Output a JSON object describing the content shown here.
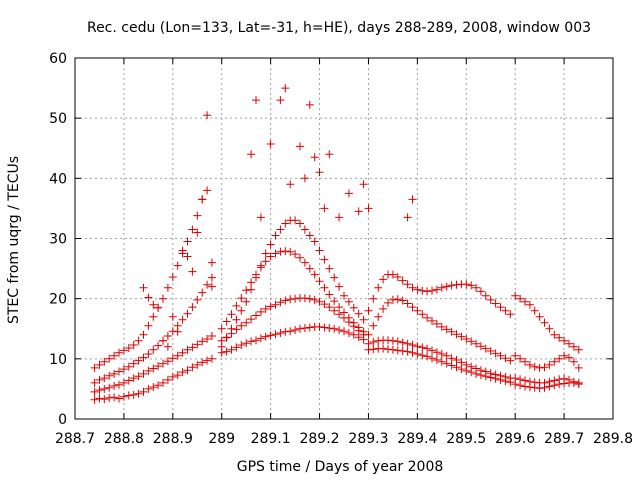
{
  "chart_data": {
    "type": "scatter",
    "title": "Rec. cedu (Lon=133, Lat=-31, h=HE), days 288-289, 2008, window 003",
    "xlabel": "GPS time / Days of year 2008",
    "ylabel": "STEC from uqrg / TECUs",
    "xlim": [
      288.7,
      289.8
    ],
    "ylim": [
      0,
      60
    ],
    "xticks": [
      "288.7",
      "288.8",
      "288.9",
      "289",
      "289.1",
      "289.2",
      "289.3",
      "289.4",
      "289.5",
      "289.6",
      "289.7",
      "289.8"
    ],
    "yticks": [
      "0",
      "10",
      "20",
      "30",
      "40",
      "50",
      "60"
    ],
    "grid": true,
    "marker": "plus",
    "colors": {
      "series": "#dd0000"
    },
    "series": [
      {
        "x": [
          288.74,
          288.75,
          288.76,
          288.77,
          288.78,
          288.79,
          288.8,
          288.81,
          288.82,
          288.83,
          288.84,
          288.85,
          288.86,
          288.87,
          288.88,
          288.89,
          288.9,
          288.91,
          288.92,
          288.93,
          288.94,
          288.95,
          288.96,
          288.97,
          288.98,
          288.74,
          288.75,
          288.76,
          288.77,
          288.78,
          288.79,
          288.8,
          288.81,
          288.82,
          288.83,
          288.84,
          288.85,
          288.86,
          288.87,
          288.88,
          288.89,
          288.9,
          288.91,
          288.92,
          288.93,
          288.94,
          288.95,
          288.96,
          288.97,
          288.98,
          288.74,
          288.75,
          288.76,
          288.77,
          288.78,
          288.79,
          288.8,
          288.81,
          288.82,
          288.83,
          288.84,
          288.85,
          288.86,
          288.87,
          288.88,
          288.89,
          288.9,
          288.91,
          288.92,
          288.93,
          288.94,
          288.95,
          288.96,
          288.97,
          288.98,
          288.74,
          288.75,
          288.76,
          288.77,
          288.78,
          288.79,
          288.8,
          288.81,
          288.82,
          288.83,
          288.84,
          288.85,
          288.86,
          288.87,
          288.88,
          288.89,
          288.9,
          288.91,
          288.92,
          288.93,
          288.94,
          288.95,
          288.96,
          288.97,
          288.98,
          288.84,
          288.85,
          288.86,
          288.87,
          288.88,
          288.89,
          288.9,
          288.91,
          288.92,
          288.93,
          288.94,
          288.95,
          288.96,
          288.97,
          288.98,
          289.0,
          289.01,
          289.02,
          289.03,
          289.04,
          289.05,
          289.06,
          289.07,
          289.08,
          289.09,
          289.1,
          289.11,
          289.12,
          289.13,
          289.14,
          289.15,
          289.16,
          289.17,
          289.18,
          289.19,
          289.2,
          289.21,
          289.22,
          289.23,
          289.24,
          289.25,
          289.26,
          289.27,
          289.28,
          289.29,
          289.0,
          289.01,
          289.02,
          289.03,
          289.04,
          289.05,
          289.06,
          289.07,
          289.08,
          289.09,
          289.1,
          289.11,
          289.12,
          289.13,
          289.14,
          289.15,
          289.16,
          289.17,
          289.18,
          289.19,
          289.2,
          289.21,
          289.22,
          289.23,
          289.24,
          289.25,
          289.26,
          289.27,
          289.28,
          289.29,
          289.0,
          289.01,
          289.02,
          289.03,
          289.04,
          289.05,
          289.06,
          289.07,
          289.08,
          289.09,
          289.1,
          289.11,
          289.12,
          289.13,
          289.14,
          289.15,
          289.16,
          289.17,
          289.18,
          289.19,
          289.2,
          289.21,
          289.22,
          289.23,
          289.24,
          289.25,
          289.26,
          289.27,
          289.28,
          289.29,
          289.0,
          289.01,
          289.02,
          289.03,
          289.04,
          289.05,
          289.06,
          289.07,
          289.08,
          289.09,
          289.1,
          289.11,
          289.12,
          289.13,
          289.14,
          289.15,
          289.16,
          289.17,
          289.18,
          289.19,
          289.2,
          289.21,
          289.22,
          289.23,
          289.24,
          289.25,
          289.26,
          289.27,
          289.28,
          289.29,
          289.06,
          289.07,
          289.08,
          289.1,
          289.12,
          289.13,
          289.14,
          289.16,
          289.17,
          289.18,
          289.19,
          289.2,
          289.21,
          289.22,
          289.24,
          289.26,
          289.28,
          289.29,
          289.3,
          289.38,
          289.39,
          289.3,
          289.31,
          289.32,
          289.33,
          289.34,
          289.35,
          289.36,
          289.37,
          289.38,
          289.39,
          289.4,
          289.41,
          289.42,
          289.43,
          289.44,
          289.45,
          289.46,
          289.47,
          289.48,
          289.49,
          289.5,
          289.51,
          289.52,
          289.53,
          289.54,
          289.55,
          289.56,
          289.57,
          289.58,
          289.59,
          289.3,
          289.31,
          289.32,
          289.33,
          289.34,
          289.35,
          289.36,
          289.37,
          289.38,
          289.39,
          289.4,
          289.41,
          289.42,
          289.43,
          289.44,
          289.45,
          289.46,
          289.47,
          289.48,
          289.49,
          289.5,
          289.51,
          289.52,
          289.53,
          289.54,
          289.55,
          289.56,
          289.57,
          289.58,
          289.59,
          289.3,
          289.31,
          289.32,
          289.33,
          289.34,
          289.35,
          289.36,
          289.37,
          289.38,
          289.39,
          289.4,
          289.41,
          289.42,
          289.43,
          289.44,
          289.45,
          289.46,
          289.47,
          289.48,
          289.49,
          289.5,
          289.51,
          289.52,
          289.53,
          289.54,
          289.55,
          289.56,
          289.57,
          289.58,
          289.59,
          289.3,
          289.31,
          289.32,
          289.33,
          289.34,
          289.35,
          289.36,
          289.37,
          289.38,
          289.39,
          289.4,
          289.41,
          289.42,
          289.43,
          289.44,
          289.45,
          289.46,
          289.47,
          289.48,
          289.49,
          289.5,
          289.51,
          289.52,
          289.53,
          289.54,
          289.55,
          289.56,
          289.57,
          289.58,
          289.59,
          289.6,
          289.61,
          289.62,
          289.63,
          289.64,
          289.65,
          289.66,
          289.67,
          289.68,
          289.69,
          289.7,
          289.71,
          289.72,
          289.73,
          289.6,
          289.61,
          289.62,
          289.63,
          289.64,
          289.65,
          289.66,
          289.67,
          289.68,
          289.69,
          289.7,
          289.71,
          289.72,
          289.73,
          289.6,
          289.61,
          289.62,
          289.63,
          289.64,
          289.65,
          289.66,
          289.67,
          289.68,
          289.69,
          289.7,
          289.71,
          289.72,
          289.73,
          289.6,
          289.61,
          289.62,
          289.63,
          289.64,
          289.65,
          289.66,
          289.67,
          289.68,
          289.69,
          289.7,
          289.71,
          289.72,
          289.73
        ],
        "y": [
          3.2,
          3.4,
          3.3,
          3.5,
          3.6,
          3.4,
          3.7,
          3.9,
          4.0,
          4.2,
          4.5,
          5.0,
          5.3,
          5.6,
          6.0,
          6.5,
          7.0,
          7.3,
          7.8,
          8.1,
          8.6,
          9.0,
          9.4,
          9.7,
          10.0,
          4.5,
          4.8,
          5.0,
          5.2,
          5.5,
          5.7,
          6.0,
          6.4,
          6.8,
          7.1,
          7.5,
          8.0,
          8.4,
          8.8,
          9.2,
          9.6,
          10.1,
          10.5,
          11.0,
          11.5,
          11.9,
          12.4,
          12.9,
          13.3,
          13.8,
          6.0,
          6.5,
          6.8,
          7.2,
          7.5,
          7.9,
          8.3,
          8.7,
          9.2,
          9.7,
          10.2,
          10.8,
          11.5,
          12.2,
          13.0,
          13.8,
          14.6,
          15.5,
          16.5,
          17.5,
          18.6,
          19.8,
          21.0,
          22.3,
          23.5,
          8.5,
          9.0,
          9.5,
          10.0,
          10.5,
          11.0,
          11.4,
          11.8,
          12.3,
          13.0,
          14.0,
          15.5,
          17.0,
          18.5,
          20.0,
          21.8,
          23.6,
          25.5,
          27.5,
          29.5,
          31.5,
          33.8,
          36.5,
          38.0,
          26.0,
          21.8,
          20.2,
          19.0,
          18.5,
          13.0,
          12.0,
          17.0,
          14.5,
          28.0,
          27.0,
          24.5,
          31.0,
          36.5,
          50.5,
          22.0,
          11.0,
          11.2,
          11.5,
          11.9,
          12.3,
          12.6,
          12.9,
          13.1,
          13.4,
          13.7,
          13.9,
          14.1,
          14.3,
          14.5,
          14.6,
          14.8,
          15.0,
          15.1,
          15.2,
          15.3,
          15.3,
          15.2,
          15.1,
          15.0,
          14.8,
          14.6,
          14.3,
          14.0,
          13.6,
          13.2,
          13.0,
          13.6,
          14.2,
          14.9,
          15.5,
          16.0,
          16.6,
          17.2,
          17.8,
          18.3,
          18.7,
          19.0,
          19.4,
          19.7,
          19.9,
          20.0,
          20.1,
          20.1,
          20.0,
          19.8,
          19.5,
          19.1,
          18.6,
          18.0,
          17.4,
          16.8,
          16.1,
          15.4,
          14.7,
          14.0,
          15.0,
          16.2,
          17.4,
          18.8,
          20.1,
          21.4,
          22.7,
          24.0,
          25.2,
          26.2,
          27.0,
          27.5,
          27.8,
          27.9,
          27.8,
          27.4,
          26.8,
          26.0,
          25.0,
          24.0,
          22.9,
          21.8,
          20.7,
          19.6,
          18.6,
          17.7,
          16.8,
          16.0,
          15.2,
          14.5,
          12.0,
          13.5,
          15.0,
          16.5,
          18.0,
          19.5,
          21.5,
          23.5,
          25.5,
          27.5,
          29.0,
          30.5,
          31.5,
          32.5,
          33.0,
          33.0,
          32.5,
          31.5,
          30.5,
          29.5,
          28.0,
          26.5,
          25.0,
          23.5,
          22.0,
          20.5,
          19.5,
          18.5,
          17.5,
          16.5,
          44.0,
          53.0,
          33.5,
          45.7,
          53.0,
          55.0,
          39.0,
          45.3,
          40.0,
          52.2,
          43.5,
          41.0,
          35.0,
          44.0,
          33.5,
          37.5,
          34.5,
          39.0,
          35.0,
          33.5,
          36.5,
          11.5,
          11.6,
          11.7,
          11.7,
          11.6,
          11.5,
          11.4,
          11.3,
          11.2,
          11.0,
          10.8,
          10.6,
          10.4,
          10.1,
          9.8,
          9.5,
          9.2,
          8.9,
          8.6,
          8.3,
          8.0,
          7.8,
          7.5,
          7.3,
          7.1,
          6.9,
          6.7,
          6.5,
          6.3,
          6.1,
          12.5,
          12.8,
          13.0,
          13.1,
          13.1,
          13.0,
          12.9,
          12.7,
          12.5,
          12.3,
          12.1,
          11.9,
          11.7,
          11.4,
          11.1,
          10.8,
          10.5,
          10.1,
          9.8,
          9.4,
          9.0,
          8.7,
          8.4,
          8.1,
          7.9,
          7.6,
          7.4,
          7.2,
          7.0,
          6.8,
          14.0,
          15.5,
          17.0,
          18.3,
          19.3,
          19.8,
          19.9,
          19.7,
          19.2,
          18.6,
          18.0,
          17.4,
          16.8,
          16.3,
          15.8,
          15.3,
          14.9,
          14.5,
          14.1,
          13.7,
          13.3,
          12.9,
          12.5,
          12.1,
          11.7,
          11.3,
          10.9,
          10.5,
          10.1,
          9.7,
          18.0,
          20.0,
          21.8,
          23.2,
          24.0,
          24.0,
          23.6,
          23.0,
          22.4,
          21.8,
          21.5,
          21.3,
          21.2,
          21.3,
          21.5,
          21.8,
          22.0,
          22.2,
          22.3,
          22.4,
          22.4,
          22.2,
          21.8,
          21.2,
          20.5,
          19.8,
          19.2,
          18.6,
          18.0,
          17.4,
          5.8,
          5.6,
          5.4,
          5.3,
          5.2,
          5.1,
          5.2,
          5.4,
          5.6,
          5.8,
          5.9,
          6.0,
          6.0,
          6.0,
          6.8,
          6.6,
          6.4,
          6.2,
          6.1,
          6.0,
          6.0,
          6.2,
          6.4,
          6.6,
          6.7,
          6.5,
          6.2,
          5.8,
          10.5,
          10.0,
          9.5,
          9.0,
          8.7,
          8.5,
          8.6,
          9.0,
          9.5,
          10.0,
          10.5,
          10.2,
          9.5,
          8.5,
          20.5,
          20.0,
          19.5,
          19.0,
          18.0,
          17.0,
          16.0,
          15.0,
          14.0,
          13.5,
          13.0,
          12.5,
          12.0,
          11.5
        ]
      }
    ]
  }
}
